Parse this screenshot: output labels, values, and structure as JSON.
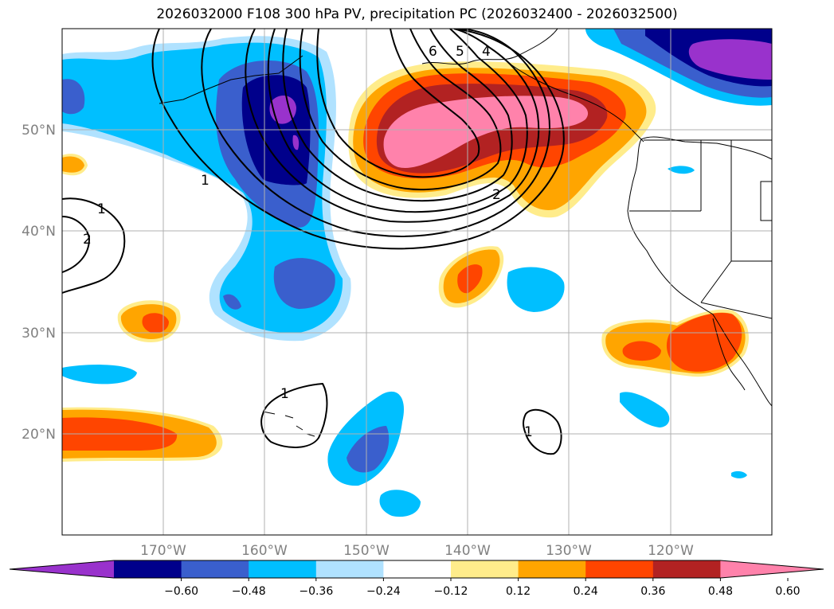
{
  "title": "2026032000 F108 300 hPa PV, precipitation PC (2026032400 - 2026032500)",
  "lat_labels": [
    "50°N",
    "40°N",
    "30°N",
    "20°N"
  ],
  "lon_labels": [
    "170°W",
    "160°W",
    "150°W",
    "140°W",
    "130°W",
    "120°W"
  ],
  "colorbar": {
    "tick_labels": [
      "−0.60",
      "−0.48",
      "−0.36",
      "−0.24",
      "−0.12",
      "0.12",
      "0.24",
      "0.36",
      "0.48",
      "0.60"
    ],
    "colors": [
      "#9932CC",
      "#00008B",
      "#3A5FCD",
      "#00BFFF",
      "#B0E2FF",
      "#FFFFFF",
      "#FFEC8B",
      "#FFA500",
      "#FF4500",
      "#B22222",
      "#FF82AB"
    ]
  },
  "pv_contour_labels": [
    "6",
    "5",
    "4",
    "2",
    "1",
    "1",
    "2",
    "1",
    "1"
  ],
  "chart_data": {
    "type": "map",
    "projection": "lat-lon",
    "lon_range": [
      -180,
      -110
    ],
    "lat_range": [
      10,
      60
    ],
    "field_filled": "precipitation PC",
    "field_contours": "300 hPa PV"
  }
}
